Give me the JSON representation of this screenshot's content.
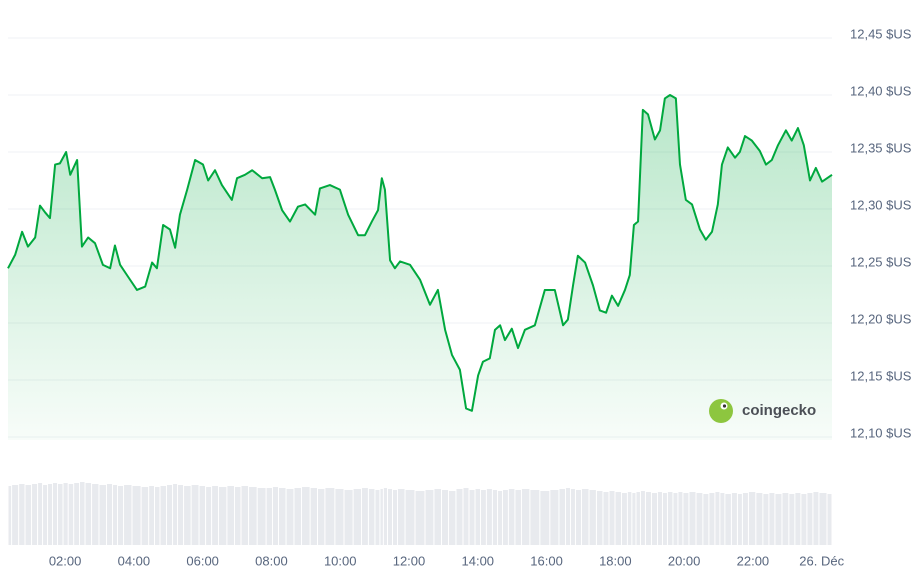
{
  "chart_data": {
    "type": "line",
    "x": [
      0.34,
      0.55,
      0.75,
      0.92,
      1.13,
      1.27,
      1.42,
      1.56,
      1.71,
      1.85,
      2.03,
      2.15,
      2.35,
      2.49,
      2.67,
      2.87,
      3.1,
      3.31,
      3.45,
      3.6,
      3.8,
      4.09,
      4.33,
      4.53,
      4.67,
      4.85,
      5.05,
      5.2,
      5.34,
      5.55,
      5.78,
      6.01,
      6.16,
      6.36,
      6.56,
      6.85,
      7.0,
      7.23,
      7.44,
      7.73,
      7.96,
      8.1,
      8.31,
      8.54,
      8.77,
      8.98,
      9.27,
      9.41,
      9.7,
      9.99,
      10.23,
      10.52,
      10.72,
      10.92,
      11.1,
      11.21,
      11.3,
      11.45,
      11.59,
      11.74,
      12.03,
      12.32,
      12.61,
      12.84,
      13.05,
      13.25,
      13.48,
      13.66,
      13.83,
      14.01,
      14.15,
      14.35,
      14.5,
      14.65,
      14.79,
      14.99,
      15.17,
      15.37,
      15.66,
      15.95,
      16.24,
      16.48,
      16.62,
      16.77,
      16.91,
      17.12,
      17.35,
      17.55,
      17.73,
      17.9,
      18.08,
      18.28,
      18.42,
      18.54,
      18.66,
      18.8,
      18.95,
      19.15,
      19.3,
      19.44,
      19.59,
      19.76,
      19.88,
      20.05,
      20.23,
      20.46,
      20.63,
      20.81,
      20.98,
      21.1,
      21.27,
      21.48,
      21.62,
      21.77,
      21.97,
      22.2,
      22.38,
      22.55,
      22.73,
      22.96,
      23.13,
      23.31,
      23.48,
      23.66,
      23.83,
      24.01,
      24.3
    ],
    "values": [
      12.248,
      12.26,
      12.28,
      12.267,
      12.275,
      12.303,
      12.297,
      12.292,
      12.339,
      12.34,
      12.35,
      12.33,
      12.343,
      12.267,
      12.275,
      12.27,
      12.251,
      12.248,
      12.268,
      12.251,
      12.242,
      12.229,
      12.232,
      12.253,
      12.248,
      12.286,
      12.282,
      12.266,
      12.295,
      12.317,
      12.343,
      12.339,
      12.325,
      12.334,
      12.321,
      12.308,
      12.327,
      12.33,
      12.334,
      12.327,
      12.328,
      12.317,
      12.299,
      12.289,
      12.302,
      12.304,
      12.295,
      12.318,
      12.321,
      12.317,
      12.295,
      12.277,
      12.277,
      12.289,
      12.299,
      12.327,
      12.317,
      12.255,
      12.248,
      12.254,
      12.251,
      12.238,
      12.216,
      12.229,
      12.194,
      12.172,
      12.159,
      12.125,
      12.123,
      12.154,
      12.166,
      12.169,
      12.194,
      12.198,
      12.185,
      12.195,
      12.178,
      12.194,
      12.198,
      12.229,
      12.229,
      12.198,
      12.203,
      12.233,
      12.259,
      12.253,
      12.233,
      12.211,
      12.209,
      12.224,
      12.215,
      12.229,
      12.242,
      12.286,
      12.289,
      12.387,
      12.383,
      12.361,
      12.369,
      12.397,
      12.4,
      12.397,
      12.339,
      12.308,
      12.304,
      12.282,
      12.273,
      12.28,
      12.304,
      12.339,
      12.354,
      12.345,
      12.35,
      12.364,
      12.36,
      12.351,
      12.339,
      12.343,
      12.356,
      12.369,
      12.36,
      12.371,
      12.356,
      12.325,
      12.336,
      12.324,
      12.33
    ],
    "color": "#00a83e",
    "xlim": [
      0.34,
      24.3
    ],
    "xticks": [
      {
        "value": 2,
        "label": "02:00"
      },
      {
        "value": 4,
        "label": "04:00"
      },
      {
        "value": 6,
        "label": "06:00"
      },
      {
        "value": 8,
        "label": "08:00"
      },
      {
        "value": 10,
        "label": "10:00"
      },
      {
        "value": 12,
        "label": "12:00"
      },
      {
        "value": 14,
        "label": "14:00"
      },
      {
        "value": 16,
        "label": "16:00"
      },
      {
        "value": 18,
        "label": "18:00"
      },
      {
        "value": 20,
        "label": "20:00"
      },
      {
        "value": 22,
        "label": "22:00"
      },
      {
        "value": 24,
        "label": "26. Déc"
      }
    ],
    "ylim": [
      12.1,
      12.45
    ],
    "yticks": [
      {
        "value": 12.45,
        "label": "12,45 $US"
      },
      {
        "value": 12.4,
        "label": "12,40 $US"
      },
      {
        "value": 12.35,
        "label": "12,35 $US"
      },
      {
        "value": 12.3,
        "label": "12,30 $US"
      },
      {
        "value": 12.25,
        "label": "12,25 $US"
      },
      {
        "value": 12.2,
        "label": "12,20 $US"
      },
      {
        "value": 12.15,
        "label": "12,15 $US"
      },
      {
        "value": 12.1,
        "label": "12,10 $US"
      }
    ],
    "grid": true,
    "volume": {
      "color": "#e8eaee",
      "ylim": [
        0,
        100
      ],
      "values": [
        59,
        60,
        61,
        60,
        61,
        62,
        60,
        61,
        62,
        61,
        62,
        61,
        62,
        63,
        62,
        61,
        60,
        61,
        60,
        59,
        60,
        59,
        58,
        59,
        58,
        59,
        60,
        61,
        60,
        59,
        60,
        59,
        58,
        59,
        58,
        59,
        58,
        59,
        58,
        57,
        57,
        58,
        57,
        56,
        57,
        58,
        57,
        56,
        57,
        56,
        55,
        56,
        57,
        56,
        55,
        56,
        57,
        56,
        55,
        56,
        55,
        54,
        55,
        56,
        55,
        54,
        56,
        57,
        55,
        56,
        55,
        56,
        55,
        54,
        55,
        56,
        55,
        56,
        55,
        54,
        55,
        56,
        57,
        56,
        55,
        56,
        55,
        54,
        53,
        54,
        53,
        52,
        53,
        52,
        53,
        54,
        53,
        52,
        53,
        52,
        53,
        52,
        53,
        52,
        53,
        52,
        51,
        52,
        53,
        52,
        51,
        52,
        51,
        52,
        53,
        52,
        51,
        52,
        51,
        52,
        51,
        52,
        51,
        52,
        53,
        52,
        51
      ]
    },
    "watermark": "coingecko"
  }
}
